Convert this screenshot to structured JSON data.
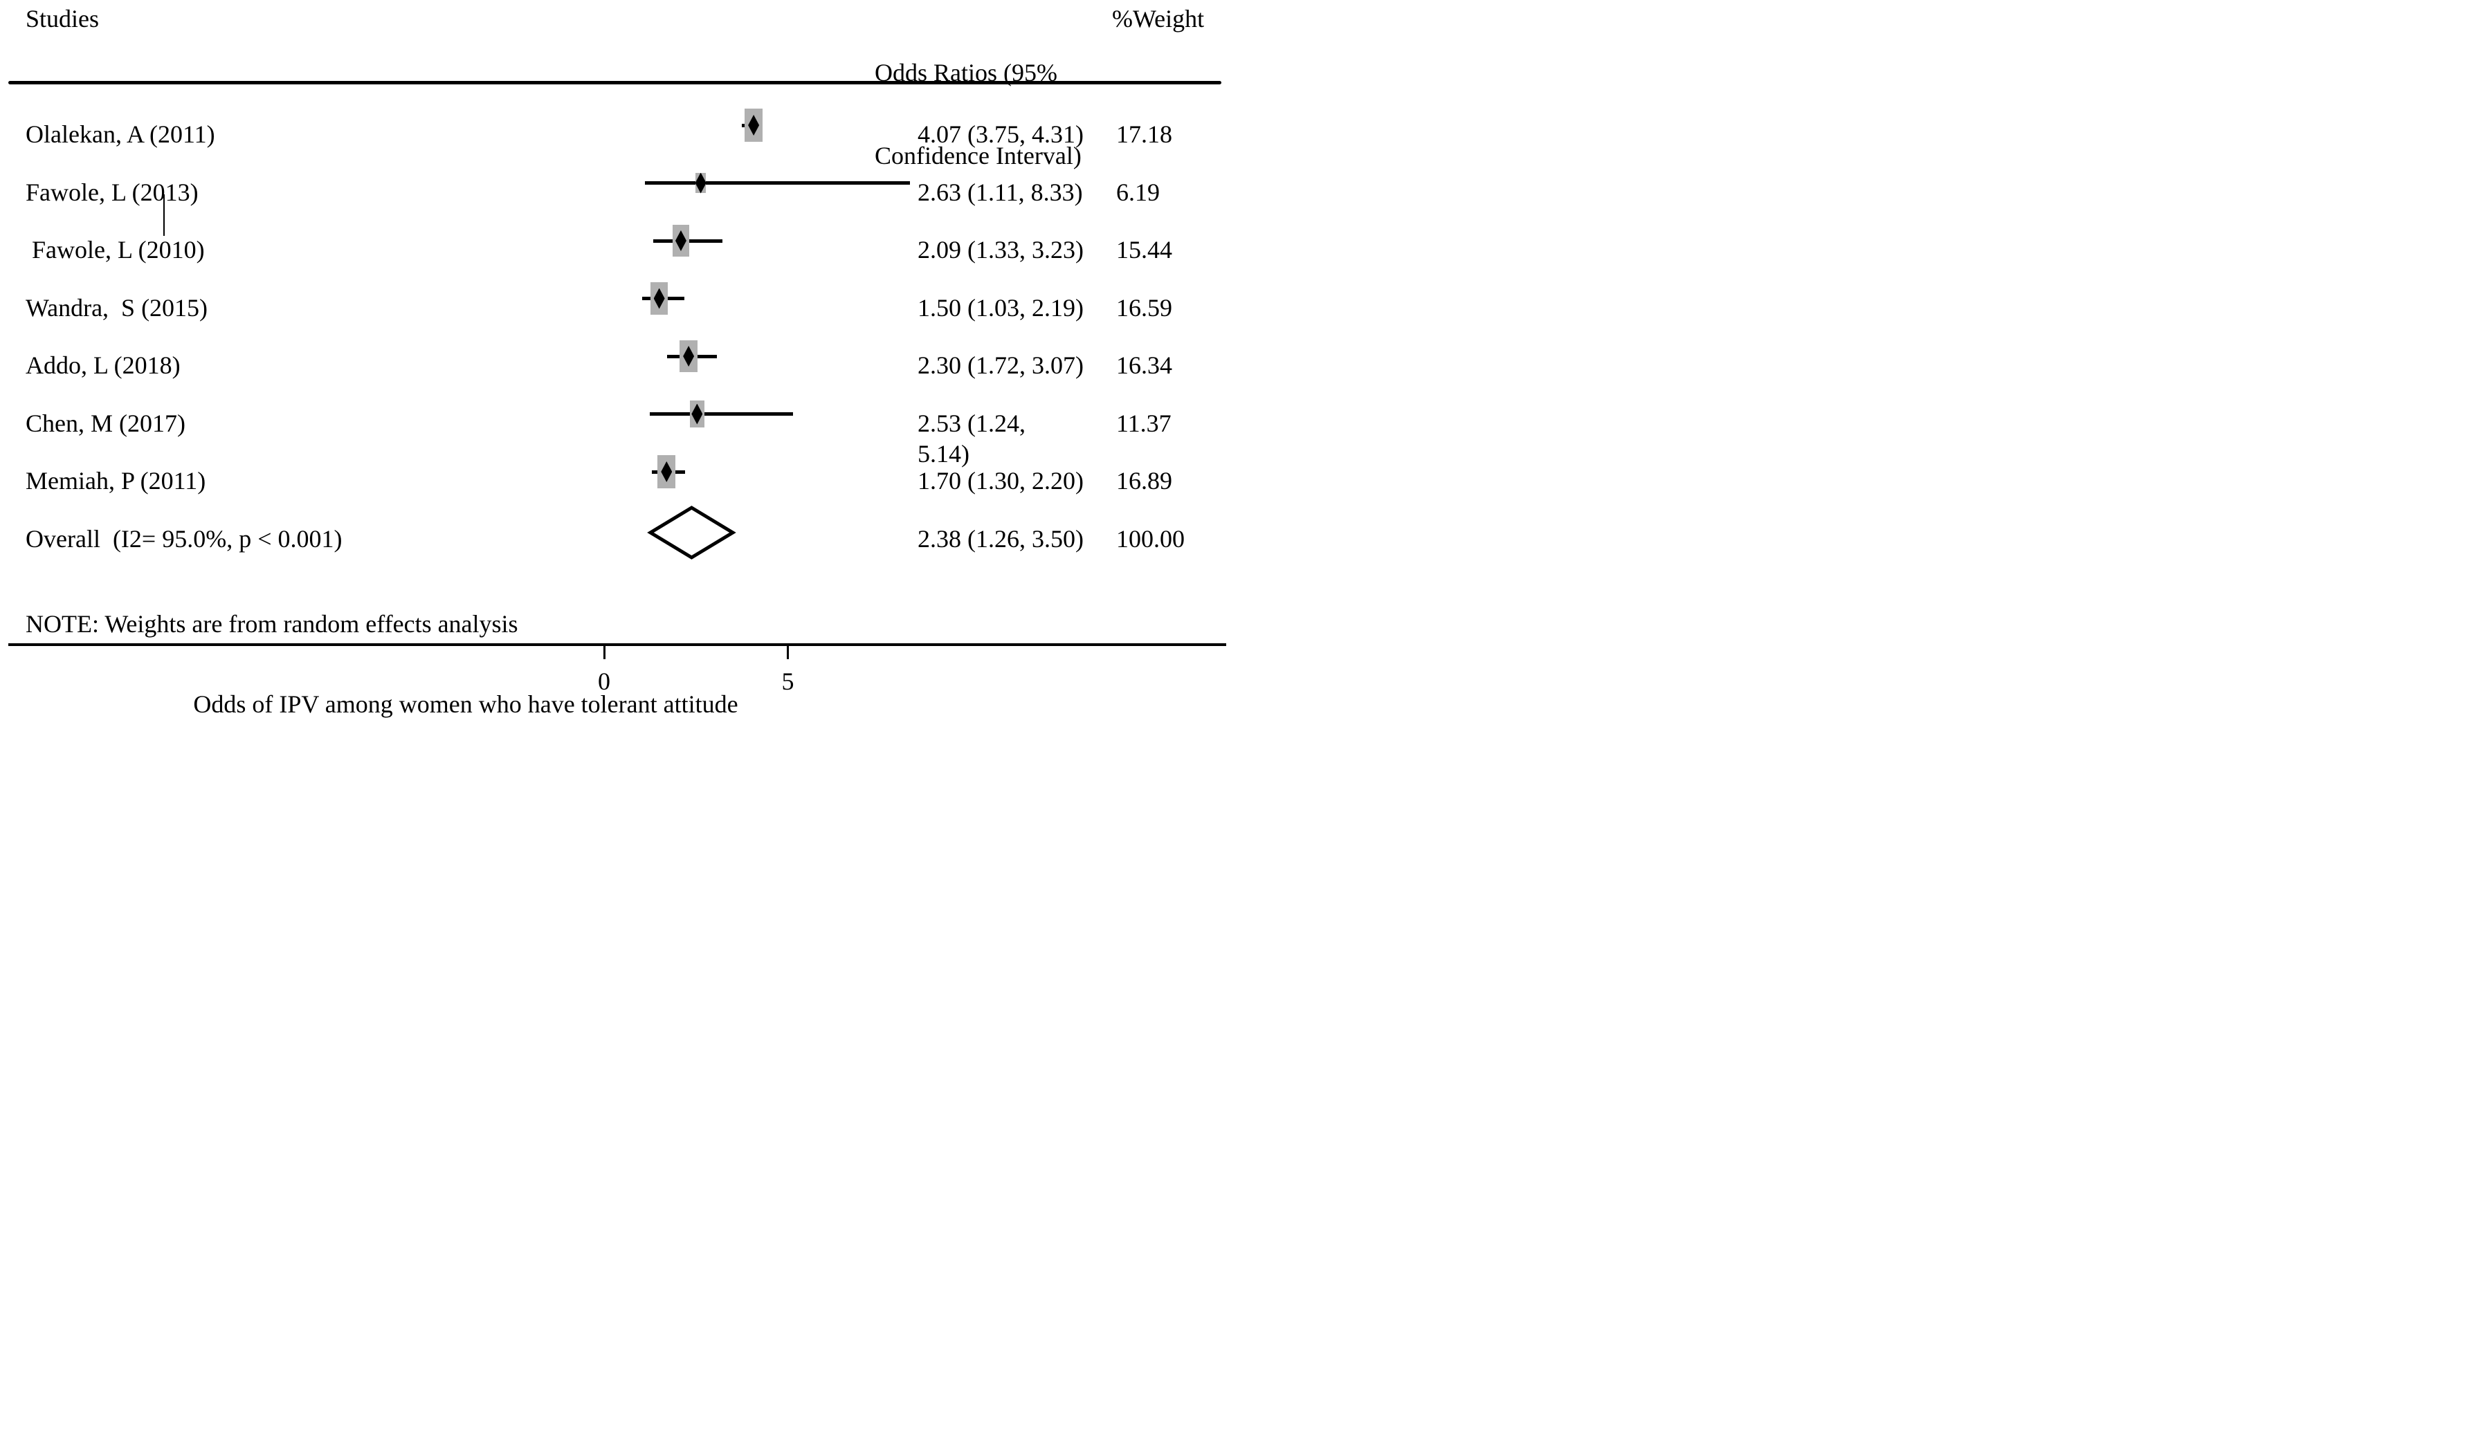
{
  "header": {
    "studies_label": "Studies",
    "or_header_lines": [
      "Odds Ratios (95%",
      "Confidence Interval)"
    ],
    "weight_label": "%Weight"
  },
  "note": {
    "text": "NOTE: Weights are from random effects analysis"
  },
  "chart_data": {
    "type": "forest",
    "xlabel": "Odds of IPV among women who have tolerant attitude",
    "x_axis": {
      "ticks": [
        0,
        5
      ],
      "range_shown": [
        0,
        8.6
      ],
      "grid": false
    },
    "or_column_header": "Odds Ratios (95% Confidence Interval)",
    "weight_column_header": "%Weight",
    "studies": [
      {
        "label": "Olalekan, A (2011)",
        "estimate": 4.07,
        "ci_low": 3.75,
        "ci_high": 4.31,
        "weight": 17.18,
        "or_text_lines": [
          "4.07 (3.75, 4.31)"
        ],
        "weight_text": "17.18",
        "overall": false
      },
      {
        "label": "Fawole, L (2013)",
        "estimate": 2.63,
        "ci_low": 1.11,
        "ci_high": 8.33,
        "weight": 6.19,
        "or_text_lines": [
          "2.63 (1.11, 8.33)"
        ],
        "weight_text": "6.19",
        "overall": false
      },
      {
        "label": " Fawole, L (2010)",
        "estimate": 2.09,
        "ci_low": 1.33,
        "ci_high": 3.23,
        "weight": 15.44,
        "or_text_lines": [
          "2.09 (1.33, 3.23)"
        ],
        "weight_text": "15.44",
        "overall": false
      },
      {
        "label": "Wandra,  S (2015)",
        "estimate": 1.5,
        "ci_low": 1.03,
        "ci_high": 2.19,
        "weight": 16.59,
        "or_text_lines": [
          "1.50 (1.03, 2.19)"
        ],
        "weight_text": "16.59",
        "overall": false
      },
      {
        "label": "Addo, L (2018)",
        "estimate": 2.3,
        "ci_low": 1.72,
        "ci_high": 3.07,
        "weight": 16.34,
        "or_text_lines": [
          "2.30 (1.72, 3.07)"
        ],
        "weight_text": "16.34",
        "overall": false
      },
      {
        "label": "Chen, M (2017)",
        "estimate": 2.53,
        "ci_low": 1.24,
        "ci_high": 5.14,
        "weight": 11.37,
        "or_text_lines": [
          "2.53 (1.24,",
          "5.14)"
        ],
        "weight_text": "11.37",
        "overall": false
      },
      {
        "label": "Memiah, P (2011)",
        "estimate": 1.7,
        "ci_low": 1.3,
        "ci_high": 2.2,
        "weight": 16.89,
        "or_text_lines": [
          "1.70 (1.30, 2.20)"
        ],
        "weight_text": "16.89",
        "overall": false
      },
      {
        "label": "Overall  (I2= 95.0%, p < 0.001)",
        "estimate": 2.38,
        "ci_low": 1.26,
        "ci_high": 3.5,
        "weight": 100.0,
        "or_text_lines": [
          "2.38 (1.26, 3.50)"
        ],
        "weight_text": "100.00",
        "overall": true
      }
    ]
  },
  "colors": {
    "text": "#000000",
    "marker_black": "#000000",
    "weight_box_gray": "#b0b0b0",
    "background": "#ffffff"
  }
}
